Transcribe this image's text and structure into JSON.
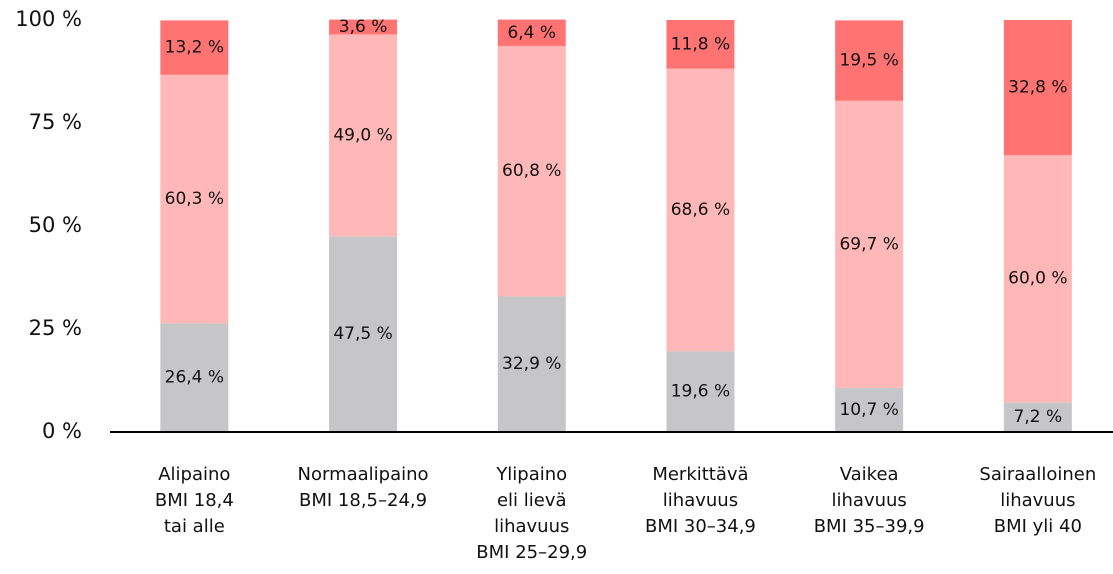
{
  "chart_data": {
    "type": "bar",
    "stacked": true,
    "categories": [
      [
        "Alipaino",
        "BMI 18,4",
        "tai alle"
      ],
      [
        "Normaalipaino",
        "BMI 18,5–24,9"
      ],
      [
        "Ylipaino",
        "eli lievä",
        "lihavuus",
        "BMI 25–29,9"
      ],
      [
        "Merkittävä",
        "lihavuus",
        "BMI 30–34,9"
      ],
      [
        "Vaikea",
        "lihavuus",
        "BMI 35–39,9"
      ],
      [
        "Sairaalloinen",
        "lihavuus",
        "BMI yli 40"
      ]
    ],
    "series": [
      {
        "color": "#c6c6c8",
        "values": [
          26.4,
          47.5,
          32.9,
          19.6,
          10.7,
          7.2
        ],
        "value_labels": [
          "26,4 %",
          "47,5 %",
          "32,9 %",
          "19,6 %",
          "10,7 %",
          "7,2 %"
        ]
      },
      {
        "color": "#ffb7b7",
        "values": [
          60.3,
          49.0,
          60.8,
          68.6,
          69.7,
          60.0
        ],
        "value_labels": [
          "60,3 %",
          "49,0 %",
          "60,8 %",
          "68,6 %",
          "69,7 %",
          "60,0 %"
        ]
      },
      {
        "color": "#ff7373",
        "values": [
          13.2,
          3.6,
          6.4,
          11.8,
          19.5,
          32.8
        ],
        "value_labels": [
          "13,2 %",
          "3,6 %",
          "6,4 %",
          "11,8 %",
          "19,5 %",
          "32,8 %"
        ]
      }
    ],
    "ylim": [
      0,
      100
    ],
    "yticks": [
      {
        "value": 0,
        "label": "0 %"
      },
      {
        "value": 25,
        "label": "25 %"
      },
      {
        "value": 50,
        "label": "50 %"
      },
      {
        "value": 75,
        "label": "75 %"
      },
      {
        "value": 100,
        "label": "100 %"
      }
    ],
    "grid": false
  }
}
